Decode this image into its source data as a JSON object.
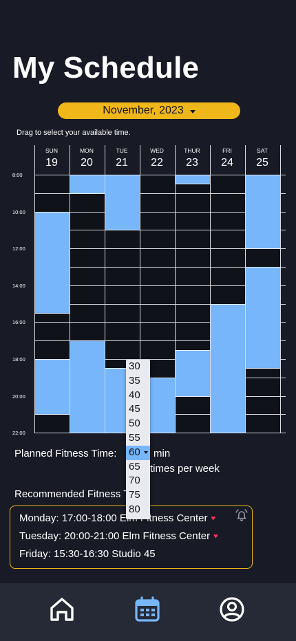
{
  "page": {
    "title": "My Schedule"
  },
  "month_selector": {
    "label": "November, 2023"
  },
  "hint": "Drag to select your available time.",
  "days": [
    {
      "name": "SUN",
      "num": "19"
    },
    {
      "name": "MON",
      "num": "20"
    },
    {
      "name": "TUE",
      "num": "21"
    },
    {
      "name": "WED",
      "num": "22"
    },
    {
      "name": "THUR",
      "num": "23"
    },
    {
      "name": "FRI",
      "num": "24"
    },
    {
      "name": "SAT",
      "num": "25"
    }
  ],
  "time_labels": [
    "8:00",
    "10:00",
    "12:00",
    "14:00",
    "16:00",
    "18:00",
    "20:00",
    "22:00"
  ],
  "availability": [
    {
      "day": 0,
      "start": 10.0,
      "end": 15.5
    },
    {
      "day": 0,
      "start": 18.0,
      "end": 21.0
    },
    {
      "day": 1,
      "start": 8.0,
      "end": 9.0
    },
    {
      "day": 1,
      "start": 17.0,
      "end": 22.0
    },
    {
      "day": 2,
      "start": 8.0,
      "end": 11.0
    },
    {
      "day": 2,
      "start": 18.5,
      "end": 22.0
    },
    {
      "day": 3,
      "start": 19.0,
      "end": 22.0
    },
    {
      "day": 4,
      "start": 8.0,
      "end": 8.5
    },
    {
      "day": 4,
      "start": 17.5,
      "end": 20.0
    },
    {
      "day": 5,
      "start": 15.0,
      "end": 22.0
    },
    {
      "day": 6,
      "start": 8.0,
      "end": 12.0
    },
    {
      "day": 6,
      "start": 13.0,
      "end": 18.5
    }
  ],
  "planned": {
    "label": "Planned Fitness Time:",
    "unit": "min",
    "frequency_text": "times per week",
    "selected": "60",
    "options": [
      "30",
      "35",
      "40",
      "45",
      "50",
      "55",
      "60",
      "65",
      "70",
      "75",
      "80"
    ]
  },
  "recommended": {
    "title": "Recommended Fitness Time:",
    "items": [
      {
        "text": "Monday: 17:00-18:00 Elm Fitness Center",
        "favorite": true
      },
      {
        "text": "Tuesday: 20:00-21:00 Elm Fitness Center",
        "favorite": true
      },
      {
        "text": "Friday: 15:30-16:30 Studio 45",
        "favorite": false
      }
    ]
  },
  "nav": [
    {
      "icon": "home-icon",
      "active": false
    },
    {
      "icon": "calendar-icon",
      "active": true
    },
    {
      "icon": "profile-icon",
      "active": false
    }
  ],
  "colors": {
    "accent": "#f0b71a",
    "available": "#77b6fb",
    "background": "#181a25",
    "nav_bg": "#262a36",
    "heart": "#ff2f5b"
  }
}
